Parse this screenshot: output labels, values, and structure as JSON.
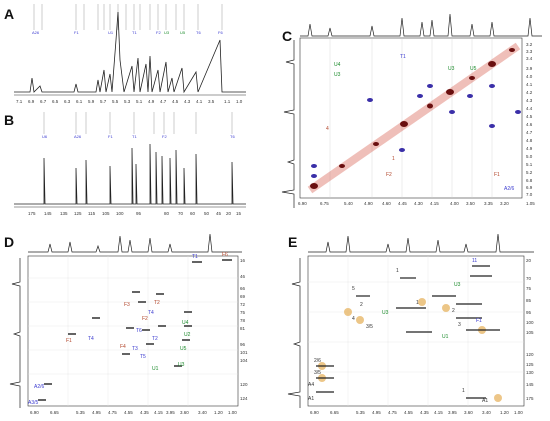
{
  "panels": {
    "A": {
      "letter": "A",
      "axis": [
        "7.1",
        "6.9",
        "6.7",
        "6.5",
        "6.3",
        "6.1",
        "5.9",
        "5.7",
        "5.5",
        "5.3",
        "5.1",
        "4.9",
        "4.7",
        "4.5",
        "4.3",
        "4.1",
        "3.9",
        "3.7",
        "3.5",
        "3.3",
        "1.1",
        "1.0"
      ]
    },
    "B": {
      "letter": "B",
      "axis": [
        "175",
        "145",
        "135",
        "125",
        "115",
        "105",
        "100",
        "95",
        "80",
        "70",
        "60",
        "50",
        "45",
        "20",
        "15"
      ]
    },
    "C": {
      "letter": "C",
      "xaxis": [
        "6.90",
        "6.75",
        "5.40",
        "4.90",
        "4.60",
        "4.45",
        "4.30",
        "4.15",
        "4.00",
        "3.50",
        "3.35",
        "3.20",
        "1.05"
      ],
      "yaxis": [
        "3.2",
        "3.3",
        "3.4",
        "3.9",
        "4.0",
        "4.1",
        "4.2",
        "4.3",
        "4.4",
        "4.5",
        "4.6",
        "4.7",
        "4.8",
        "4.9",
        "5.0",
        "5.1",
        "5.2",
        "6.8",
        "6.9",
        "7.0"
      ],
      "labels": [
        "U4",
        "U3",
        "U3",
        "U5",
        "A2/6",
        "3",
        "4",
        "1",
        "2",
        "4",
        "5",
        "F1",
        "T1",
        "F2"
      ]
    },
    "D": {
      "letter": "D",
      "xaxis": [
        "6.90",
        "6.65",
        "5.35",
        "4.95",
        "4.75",
        "4.55",
        "4.35",
        "4.15",
        "3.95",
        "3.60",
        "3.40",
        "1.20",
        "1.00"
      ],
      "yaxis": [
        "16",
        "46",
        "66",
        "69",
        "72",
        "75",
        "78",
        "81",
        "96",
        "101",
        "104",
        "120",
        "124"
      ],
      "labels": [
        "T1",
        "F6",
        "F3",
        "T2",
        "T4",
        "T6",
        "U4",
        "F2",
        "U2",
        "T3",
        "U5",
        "T5",
        "F4",
        "T2",
        "U3",
        "F1",
        "U1",
        "A2/6",
        "A3/5"
      ]
    },
    "E": {
      "letter": "E",
      "xaxis": [
        "6.90",
        "6.65",
        "5.35",
        "4.95",
        "4.75",
        "4.55",
        "4.35",
        "4.15",
        "3.95",
        "3.60",
        "3.40",
        "1.20",
        "1.00"
      ],
      "yaxis": [
        "20",
        "70",
        "75",
        "85",
        "95",
        "100",
        "105",
        "120",
        "125",
        "130",
        "145",
        "175"
      ],
      "labels": [
        "1",
        "5",
        "2",
        "4",
        "3/5",
        "U3",
        "U1",
        "2/6",
        "3/5",
        "A4",
        "A1",
        "1",
        "A1"
      ]
    }
  }
}
